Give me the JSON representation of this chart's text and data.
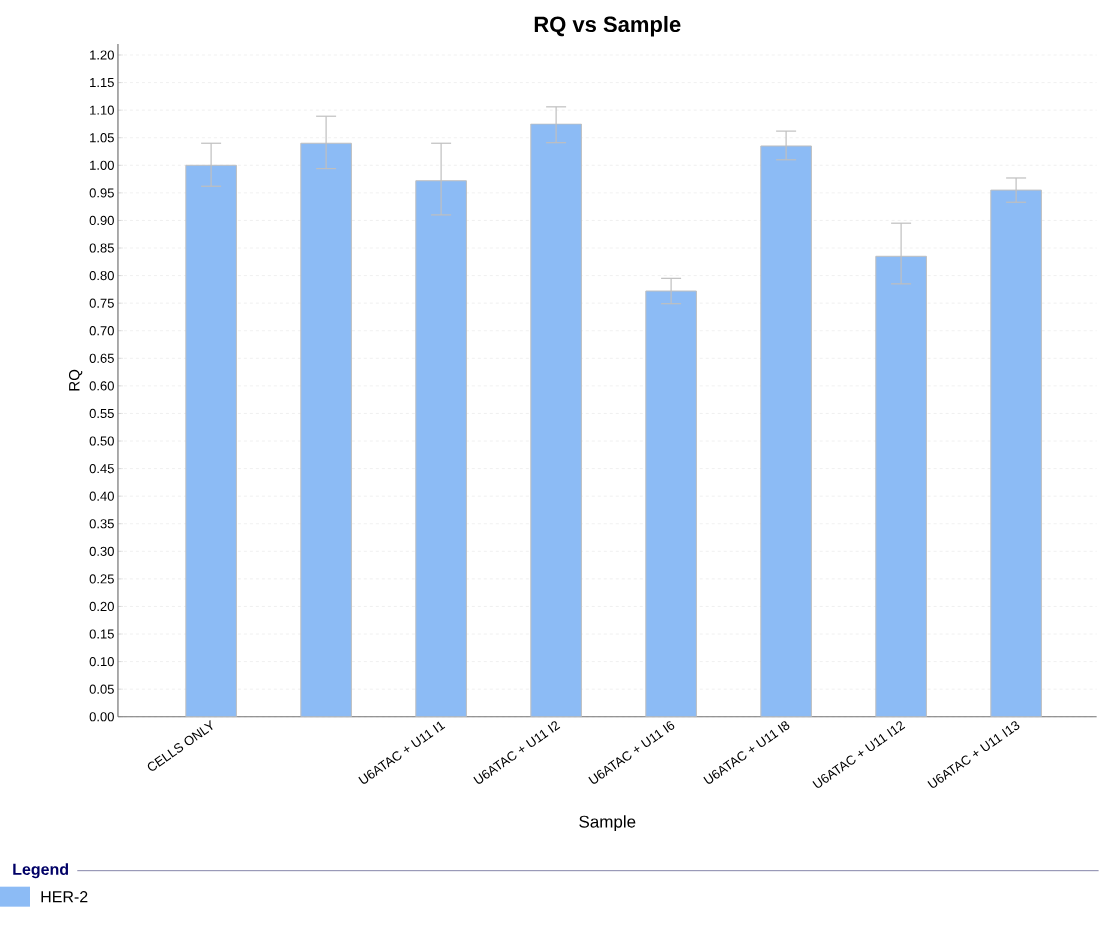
{
  "chart_data": {
    "type": "bar",
    "title": "RQ vs Sample",
    "xlabel": "Sample",
    "ylabel": "RQ",
    "legend_title": "Legend",
    "categories": [
      "CELLS ONLY",
      null,
      "U6ATAC + U11 I1",
      "U6ATAC + U11 I2",
      "U6ATAC + U11 I6",
      "U6ATAC + U11 I8",
      "U6ATAC + U11 I12",
      "U6ATAC + U11 I13"
    ],
    "series": [
      {
        "name": "HER-2",
        "color": "#8cbbf5",
        "values": [
          1.0,
          1.04,
          0.972,
          1.075,
          0.772,
          1.035,
          0.835,
          0.955
        ],
        "errors": [
          [
            0.962,
            1.04
          ],
          [
            0.994,
            1.089
          ],
          [
            0.91,
            1.04
          ],
          [
            1.041,
            1.106
          ],
          [
            0.749,
            0.795
          ],
          [
            1.01,
            1.062
          ],
          [
            0.785,
            0.895
          ],
          [
            0.933,
            0.977
          ]
        ]
      }
    ],
    "ylim": [
      0,
      1.22
    ],
    "yticks": [
      {
        "value": 0,
        "label": "0.00"
      },
      {
        "value": 0.05,
        "label": "0.05"
      },
      {
        "value": 0.1,
        "label": "0.10"
      },
      {
        "value": 0.15,
        "label": "0.15"
      },
      {
        "value": 0.2,
        "label": "0.20"
      },
      {
        "value": 0.25,
        "label": "0.25"
      },
      {
        "value": 0.3,
        "label": "0.30"
      },
      {
        "value": 0.35,
        "label": "0.35"
      },
      {
        "value": 0.4,
        "label": "0.40"
      },
      {
        "value": 0.45,
        "label": "0.45"
      },
      {
        "value": 0.5,
        "label": "0.50"
      },
      {
        "value": 0.55,
        "label": "0.55"
      },
      {
        "value": 0.6,
        "label": "0.60"
      },
      {
        "value": 0.65,
        "label": "0.65"
      },
      {
        "value": 0.7,
        "label": "0.70"
      },
      {
        "value": 0.75,
        "label": "0.75"
      },
      {
        "value": 0.8,
        "label": "0.80"
      },
      {
        "value": 0.85,
        "label": "0.85"
      },
      {
        "value": 0.9,
        "label": "0.90"
      },
      {
        "value": 0.95,
        "label": "0.95"
      },
      {
        "value": 1.0,
        "label": "1.00"
      },
      {
        "value": 1.05,
        "label": "1.05"
      },
      {
        "value": 1.1,
        "label": "1.10"
      },
      {
        "value": 1.15,
        "label": "1.15"
      },
      {
        "value": 1.2,
        "label": "1.20"
      }
    ],
    "grid": "y",
    "legend": "bottom"
  }
}
